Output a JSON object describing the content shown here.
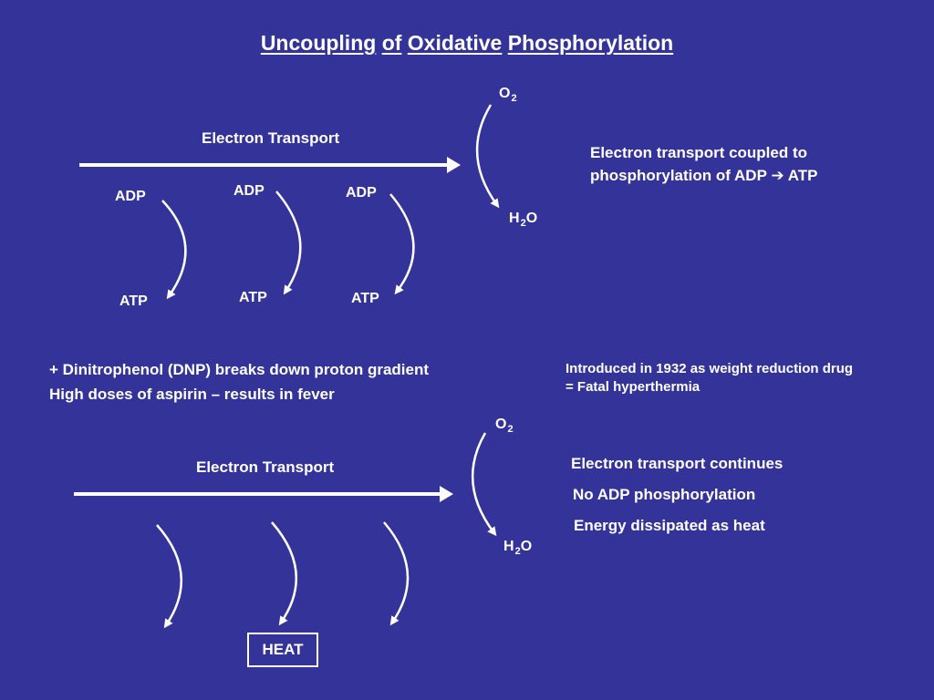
{
  "title": {
    "w1": "Uncoupling",
    "w2": "of",
    "w3": "Oxidative",
    "w4": "Phosphorylation"
  },
  "top": {
    "electron_transport": "Electron Transport",
    "o2_main": "O",
    "o2_sub": "2",
    "h2o_pre": "H",
    "h2o_sub": "2",
    "h2o_post": "O",
    "adp": [
      "ADP",
      "ADP",
      "ADP"
    ],
    "atp": [
      "ATP",
      "ATP",
      "ATP"
    ],
    "note_line1": "Electron transport coupled to",
    "note_line2_pre": "phosphorylation of ADP",
    "note_line2_arrow": "➔",
    "note_line2_post": "ATP"
  },
  "middle": {
    "dnp_line": "+ Dinitrophenol (DNP) breaks down proton gradient",
    "aspirin_pre": "High doses of aspirin",
    "aspirin_dash": "–",
    "aspirin_post": "results in fever",
    "intro_line1": "Introduced in 1932 as weight reduction drug",
    "intro_line2": "= Fatal hyperthermia"
  },
  "bottom": {
    "electron_transport": "Electron Transport",
    "o2_main": "O",
    "o2_sub": "2",
    "h2o_pre": "H",
    "h2o_sub": "2",
    "h2o_post": "O",
    "note1": "Electron transport continues",
    "note2": "No ADP phosphorylation",
    "note3": "Energy dissipated as heat",
    "heat": "HEAT"
  }
}
